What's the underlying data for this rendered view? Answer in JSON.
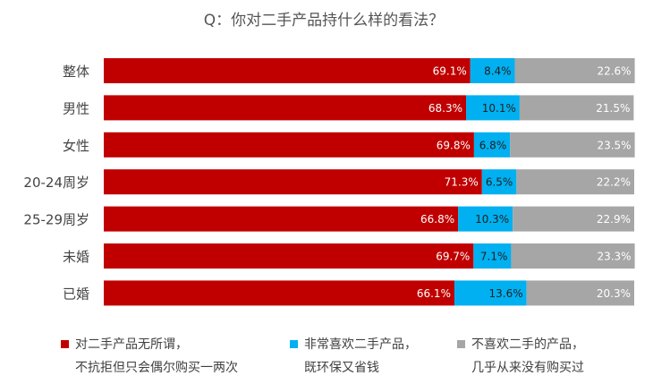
{
  "chart_data": {
    "type": "bar",
    "orientation": "horizontal",
    "stacked": true,
    "title": "Q：你对二手产品持什么样的看法？",
    "categories": [
      "整体",
      "男性",
      "女性",
      "20-24周岁",
      "25-29周岁",
      "未婚",
      "已婚"
    ],
    "xlim": [
      0,
      100
    ],
    "grid": false,
    "legend_position": "bottom",
    "series": [
      {
        "key": "s1",
        "legend_line1": "对二手产品无所谓，",
        "legend_line2": "不抗拒但只会偶尔购买一两次",
        "color": "#C00000",
        "label_color": "#ffffff",
        "values": [
          69.1,
          68.3,
          69.8,
          71.3,
          66.8,
          69.7,
          66.1
        ],
        "labels": [
          "69.1%",
          "68.3%",
          "69.8%",
          "71.3%",
          "66.8%",
          "69.7%",
          "66.1%"
        ]
      },
      {
        "key": "s2",
        "legend_line1": "非常喜欢二手产品，",
        "legend_line2": "既环保又省钱",
        "color": "#00B0F0",
        "label_color": "#1f1f1f",
        "values": [
          8.4,
          10.1,
          6.8,
          6.5,
          10.3,
          7.1,
          13.6
        ],
        "labels": [
          "8.4%",
          "10.1%",
          "6.8%",
          "6.5%",
          "10.3%",
          "7.1%",
          "13.6%"
        ]
      },
      {
        "key": "s3",
        "legend_line1": "不喜欢二手的产品，",
        "legend_line2": "几乎从来没有购买过",
        "color": "#A6A6A6",
        "label_color": "#ffffff",
        "values": [
          22.6,
          21.5,
          23.5,
          22.2,
          22.9,
          23.3,
          20.3
        ],
        "labels": [
          "22.6%",
          "21.5%",
          "23.5%",
          "22.2%",
          "22.9%",
          "23.3%",
          "20.3%"
        ]
      }
    ]
  }
}
